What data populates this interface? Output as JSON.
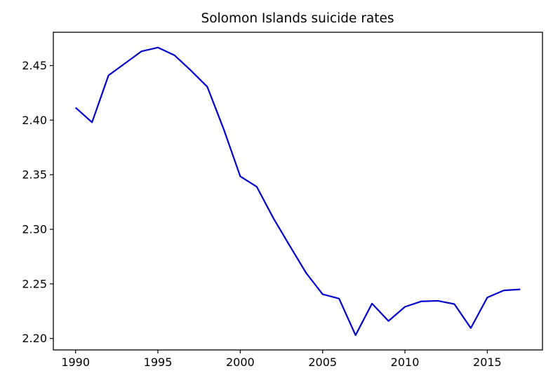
{
  "chart_data": {
    "type": "line",
    "title": "Solomon Islands suicide rates",
    "xlabel": "",
    "ylabel": "",
    "xlim": [
      1988.65,
      2018.35
    ],
    "ylim": [
      2.1895,
      2.4805
    ],
    "x_ticks": [
      1990,
      1995,
      2000,
      2005,
      2010,
      2015
    ],
    "x_tick_labels": [
      "1990",
      "1995",
      "2000",
      "2005",
      "2010",
      "2015"
    ],
    "y_ticks": [
      2.2,
      2.25,
      2.3,
      2.35,
      2.4,
      2.45
    ],
    "y_tick_labels": [
      "2.20",
      "2.25",
      "2.30",
      "2.35",
      "2.40",
      "2.45"
    ],
    "grid": false,
    "legend": "none",
    "series": [
      {
        "color": "#0000cd",
        "x": [
          1990,
          1991,
          1992,
          1993,
          1994,
          1995,
          1996,
          1997,
          1998,
          1999,
          2000,
          2001,
          2002,
          2003,
          2004,
          2005,
          2006,
          2007,
          2008,
          2009,
          2010,
          2011,
          2012,
          2013,
          2014,
          2015,
          2016,
          2017
        ],
        "y": [
          2.4115,
          2.398,
          2.441,
          2.452,
          2.463,
          2.4665,
          2.4595,
          2.4455,
          2.4305,
          2.3915,
          2.3485,
          2.339,
          2.3105,
          2.285,
          2.26,
          2.2405,
          2.2365,
          2.203,
          2.232,
          2.216,
          2.229,
          2.234,
          2.2345,
          2.2315,
          2.2095,
          2.2375,
          2.244,
          2.245
        ]
      }
    ]
  }
}
